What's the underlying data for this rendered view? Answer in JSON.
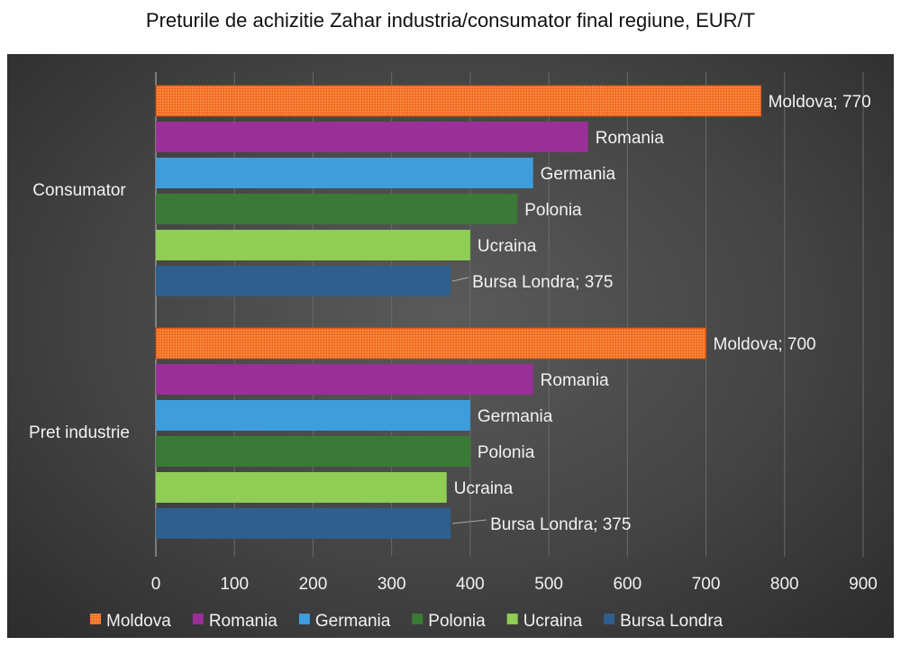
{
  "chart_data": {
    "type": "bar",
    "orientation": "horizontal",
    "title": "Preturile de achizitie Zahar industria/consumator final regiune, EUR/T",
    "categories": [
      "Consumator",
      "Pret industrie"
    ],
    "series": [
      {
        "name": "Moldova",
        "color": "#f26b21",
        "values": [
          770,
          700
        ],
        "labels": [
          "Moldova; 770",
          "Moldova; 700"
        ]
      },
      {
        "name": "Romania",
        "color": "#9b2f98",
        "values": [
          550,
          480
        ],
        "labels": [
          "Romania",
          "Romania"
        ]
      },
      {
        "name": "Germania",
        "color": "#3e9ddb",
        "values": [
          480,
          400
        ],
        "labels": [
          "Germania",
          "Germania"
        ]
      },
      {
        "name": "Polonia",
        "color": "#3a7a36",
        "values": [
          460,
          400
        ],
        "labels": [
          "Polonia",
          "Polonia"
        ]
      },
      {
        "name": "Ucraina",
        "color": "#8fcd55",
        "values": [
          400,
          370
        ],
        "labels": [
          "Ucraina",
          "Ucraina"
        ]
      },
      {
        "name": "Bursa Londra",
        "color": "#2f5f8c",
        "values": [
          375,
          375
        ],
        "labels": [
          "Bursa Londra; 375",
          "Bursa Londra; 375"
        ]
      }
    ],
    "xlim": [
      0,
      900
    ],
    "xticks": [
      "0",
      "100",
      "200",
      "300",
      "400",
      "500",
      "600",
      "700",
      "800",
      "900"
    ],
    "grid": true,
    "legend": "bottom"
  }
}
